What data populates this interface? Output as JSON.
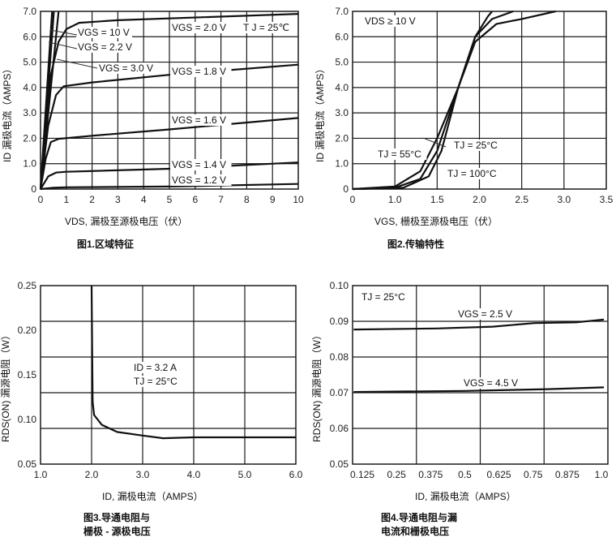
{
  "colors": {
    "grid": "#1a1a1a",
    "curve": "#111111",
    "axis_id": "#4b1060"
  },
  "chart_data": [
    {
      "type": "line",
      "title": "图1.区域特征",
      "xlabel": "VDS, 漏极至源极电压（伏）",
      "ylabel": "ID 漏极电流（AMPS）",
      "x_ticks": [
        "0",
        "1",
        "2",
        "3",
        "4",
        "5",
        "6",
        "7",
        "8",
        "9",
        "10"
      ],
      "y_ticks": [
        "0",
        "1.0",
        "2.0",
        "3.0",
        "4.0",
        "5.0",
        "6.0",
        "7.0"
      ],
      "xlim": [
        0,
        10
      ],
      "ylim": [
        0,
        7
      ],
      "grid": true,
      "annotations": [
        "VGS = 10 V",
        "VGS = 2.2 V",
        "VGS = 3.0 V",
        "VGS = 2.0 V",
        "T J = 25℃",
        "VGS = 1.8 V",
        "VGS = 1.6 V",
        "VGS = 1.4 V",
        "VGS = 1.2 V"
      ],
      "series": [
        {
          "name": "VGS = 1.2 V",
          "points": [
            [
              0,
              0
            ],
            [
              0.5,
              0.05
            ],
            [
              1,
              0.07
            ],
            [
              5,
              0.1
            ],
            [
              10,
              0.2
            ]
          ]
        },
        {
          "name": "VGS = 1.4 V",
          "points": [
            [
              0,
              0
            ],
            [
              0.3,
              0.5
            ],
            [
              0.6,
              0.65
            ],
            [
              1,
              0.68
            ],
            [
              5,
              0.8
            ],
            [
              10,
              1.05
            ]
          ]
        },
        {
          "name": "VGS = 1.6 V",
          "points": [
            [
              0,
              0
            ],
            [
              0.2,
              1.2
            ],
            [
              0.4,
              1.85
            ],
            [
              0.7,
              1.98
            ],
            [
              2,
              2.1
            ],
            [
              5,
              2.35
            ],
            [
              10,
              2.8
            ]
          ]
        },
        {
          "name": "VGS = 1.8 V",
          "points": [
            [
              0,
              0
            ],
            [
              0.3,
              2.5
            ],
            [
              0.6,
              3.7
            ],
            [
              0.9,
              4.05
            ],
            [
              2,
              4.2
            ],
            [
              5,
              4.5
            ],
            [
              10,
              4.9
            ]
          ]
        },
        {
          "name": "VGS = 2.0 V",
          "points": [
            [
              0,
              0
            ],
            [
              0.4,
              4.5
            ],
            [
              0.7,
              5.8
            ],
            [
              1,
              6.3
            ],
            [
              1.5,
              6.55
            ],
            [
              3,
              6.65
            ],
            [
              10,
              6.9
            ]
          ]
        },
        {
          "name": "VGS = 2.2 V",
          "points": [
            [
              0,
              0
            ],
            [
              0.7,
              7
            ]
          ]
        },
        {
          "name": "VGS = 3.0 V",
          "points": [
            [
              0,
              0
            ],
            [
              0.52,
              7
            ]
          ]
        },
        {
          "name": "VGS = 10 V",
          "points": [
            [
              0,
              0
            ],
            [
              0.45,
              7
            ]
          ]
        }
      ]
    },
    {
      "type": "line",
      "title": "图2.传输特性",
      "xlabel": "VGS, 栅极至源极电压（伏）",
      "ylabel": "ID 漏极电流（AMPS）",
      "x_ticks": [
        "0",
        "1.0",
        "1.5",
        "2.0",
        "2.5",
        "3.0",
        "3.5"
      ],
      "y_ticks": [
        "0",
        "1.0",
        "2.0",
        "3.0",
        "4.0",
        "5.0",
        "6.0",
        "7.0"
      ],
      "xlim": [
        0,
        3.5
      ],
      "ylim": [
        0,
        7
      ],
      "grid": true,
      "annotations": [
        "VDS ≥ 10 V",
        "TJ = 55°C",
        "TJ = 25°C",
        "TJ = 100°C"
      ],
      "series": [
        {
          "name": "TJ = 25°C",
          "points": [
            [
              0,
              0
            ],
            [
              1,
              0.05
            ],
            [
              1.3,
              0.4
            ],
            [
              1.5,
              1.5
            ],
            [
              1.75,
              4
            ],
            [
              1.95,
              6
            ],
            [
              2.1,
              6.8
            ],
            [
              2.15,
              7
            ]
          ]
        },
        {
          "name": "TJ = 55°C",
          "points": [
            [
              0,
              0
            ],
            [
              1,
              0.1
            ],
            [
              1.3,
              0.7
            ],
            [
              1.5,
              2
            ],
            [
              1.75,
              4
            ],
            [
              1.95,
              6
            ],
            [
              2.15,
              6.7
            ],
            [
              2.4,
              7
            ]
          ]
        },
        {
          "name": "TJ = 100°C",
          "points": [
            [
              0,
              0
            ],
            [
              1.1,
              0.05
            ],
            [
              1.4,
              0.5
            ],
            [
              1.55,
              1.5
            ],
            [
              1.75,
              4
            ],
            [
              1.95,
              5.8
            ],
            [
              2.2,
              6.5
            ],
            [
              2.5,
              6.7
            ],
            [
              2.9,
              7
            ]
          ]
        }
      ]
    },
    {
      "type": "line",
      "title": "图3.导通电阻与\n栅极 - 源极电压",
      "xlabel": "ID, 漏极电流（AMPS）",
      "ylabel": "RDS(ON) 漏源电阻（W）",
      "x_ticks": [
        "1.0",
        "2.0",
        "3.0",
        "4.0",
        "5.0",
        "6.0"
      ],
      "y_ticks": [
        "0.05",
        "0.10",
        "0.15",
        "0.20",
        "0.25"
      ],
      "xlim": [
        1,
        6
      ],
      "ylim": [
        0.05,
        0.25
      ],
      "grid": true,
      "annotations": [
        "ID = 3.2 A",
        "TJ = 25°C"
      ],
      "series": [
        {
          "name": "RDS(ON)",
          "points": [
            [
              2.0,
              0.25
            ],
            [
              2.02,
              0.12
            ],
            [
              2.05,
              0.105
            ],
            [
              2.2,
              0.094
            ],
            [
              2.5,
              0.086
            ],
            [
              3.0,
              0.082
            ],
            [
              3.4,
              0.079
            ],
            [
              4.0,
              0.08
            ],
            [
              6.0,
              0.08
            ]
          ]
        }
      ]
    },
    {
      "type": "line",
      "title": "图4.导通电阻与漏\n电流和栅极电压",
      "xlabel": "ID, 漏极电流（AMPS）",
      "ylabel": "RDS(ON) 漏源电阻（W）",
      "x_ticks": [
        "0.125",
        "0.25",
        "0.375",
        "0.5",
        "0.625",
        "0.75",
        "0.875",
        "1.0"
      ],
      "y_ticks": [
        "0.05",
        "0.06",
        "0.07",
        "0.08",
        "0.09",
        "0.10"
      ],
      "xlim": [
        0.1,
        1.0
      ],
      "ylim": [
        0.05,
        0.1
      ],
      "grid": true,
      "annotations": [
        "TJ = 25°C",
        "VGS = 2.5 V",
        "VGS = 4.5 V"
      ],
      "series": [
        {
          "name": "VGS = 2.5 V",
          "points": [
            [
              0.1,
              0.0877
            ],
            [
              0.4,
              0.088
            ],
            [
              0.6,
              0.0885
            ],
            [
              0.75,
              0.0895
            ],
            [
              0.9,
              0.0897
            ],
            [
              1.0,
              0.0905
            ]
          ]
        },
        {
          "name": "VGS = 4.5 V",
          "points": [
            [
              0.1,
              0.0702
            ],
            [
              0.5,
              0.0705
            ],
            [
              0.8,
              0.071
            ],
            [
              1.0,
              0.0715
            ]
          ]
        }
      ]
    }
  ]
}
